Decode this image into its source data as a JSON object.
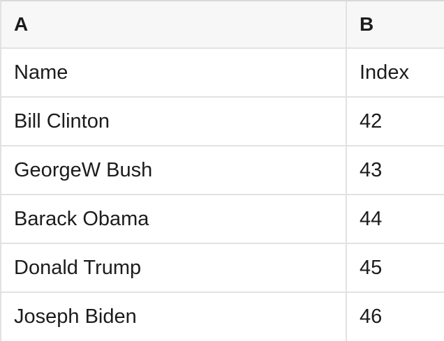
{
  "table": {
    "header": {
      "col_a": "A",
      "col_b": "B"
    },
    "rows": [
      {
        "a": "Name",
        "b": "Index"
      },
      {
        "a": "Bill Clinton",
        "b": "42"
      },
      {
        "a": "GeorgeW Bush",
        "b": "43"
      },
      {
        "a": "Barack Obama",
        "b": "44"
      },
      {
        "a": "Donald Trump",
        "b": "45"
      },
      {
        "a": "Joseph Biden",
        "b": "46"
      }
    ]
  },
  "colors": {
    "header_bg": "#f7f7f7",
    "cell_bg": "#ffffff",
    "border": "#e2e2e2",
    "border_top": "#d9d9d9",
    "text": "#1c1c1c"
  }
}
